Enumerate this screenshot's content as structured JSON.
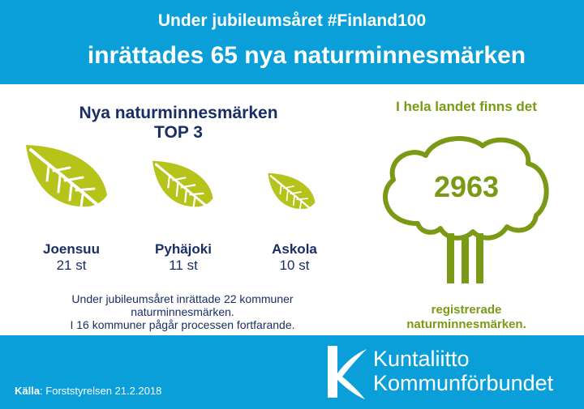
{
  "header": {
    "line1": "Under jubileumsåret #Finland100",
    "line2": "inrättades 65 nya naturminnesmärken"
  },
  "top3": {
    "title_line1": "Nya naturminnesmärken",
    "title_line2": "TOP 3",
    "items": [
      {
        "name": "Joensuu",
        "count": "21 st"
      },
      {
        "name": "Pyhäjoki",
        "count": "11 st"
      },
      {
        "name": "Askola",
        "count": "10 st"
      }
    ],
    "note_line1": "Under jubileumsåret inrättade 22 kommuner",
    "note_line2": "naturminnesmärken.",
    "note_line3": "I 16 kommuner pågår processen fortfarande."
  },
  "nation": {
    "title": "I hela landet finns det",
    "number": "2963",
    "sub_line1": "registrerade",
    "sub_line2": "naturminnesmärken."
  },
  "footer": {
    "source_label": "Källa",
    "source_text": ": Forststyrelsen 21.2.2018",
    "logo_line1": "Kuntaliitto",
    "logo_line2": "Kommunförbundet"
  },
  "colors": {
    "blue": "#0a9fd9",
    "navy": "#1a2e66",
    "green": "#7a9a16",
    "leaf": "#b5c31a"
  },
  "icons": [
    "leaf-icon",
    "tree-icon",
    "kuntaliitto-logo-icon"
  ]
}
